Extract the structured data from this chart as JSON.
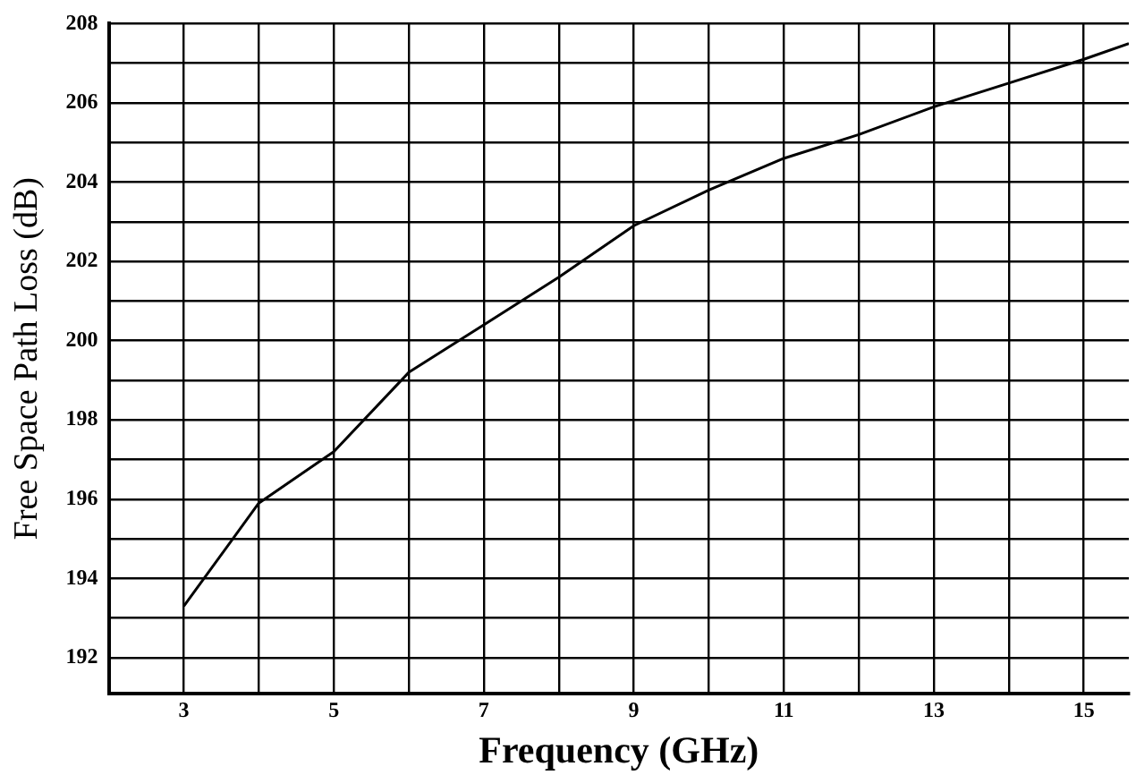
{
  "chart_data": {
    "type": "line",
    "xlabel": "Frequency (GHz)",
    "ylabel": "Free Space Path Loss (dB)",
    "x": [
      3,
      4,
      5,
      6,
      7,
      8,
      9,
      10,
      11,
      12,
      13,
      14,
      15,
      15.6
    ],
    "series": [
      {
        "color": "#000000",
        "values": [
          193.3,
          195.9,
          197.2,
          199.2,
          200.4,
          201.6,
          202.9,
          203.8,
          204.6,
          205.2,
          205.9,
          206.5,
          207.1,
          207.5
        ]
      }
    ],
    "xlim": [
      2,
      15.6
    ],
    "xticks": [
      {
        "value": 2,
        "label": null
      },
      3,
      {
        "value": 4,
        "label": null
      },
      5,
      {
        "value": 6,
        "label": null
      },
      7,
      {
        "value": 8,
        "label": null
      },
      9,
      {
        "value": 10,
        "label": null
      },
      11,
      {
        "value": 12,
        "label": null
      },
      13,
      {
        "value": 14,
        "label": null
      },
      15
    ],
    "ylim": [
      191.1,
      208
    ],
    "yticks": [
      {
        "value": 192,
        "label": "192"
      },
      {
        "value": 193,
        "label": null
      },
      194,
      {
        "value": 195,
        "label": null
      },
      196,
      {
        "value": 197,
        "label": null
      },
      198,
      {
        "value": 199,
        "label": null
      },
      200,
      {
        "value": 201,
        "label": null
      },
      202,
      {
        "value": 203,
        "label": null
      },
      204,
      {
        "value": 205,
        "label": null
      },
      206,
      {
        "value": 207,
        "label": null
      },
      208
    ],
    "grid": true,
    "marker": "none",
    "line_style": "solid"
  }
}
